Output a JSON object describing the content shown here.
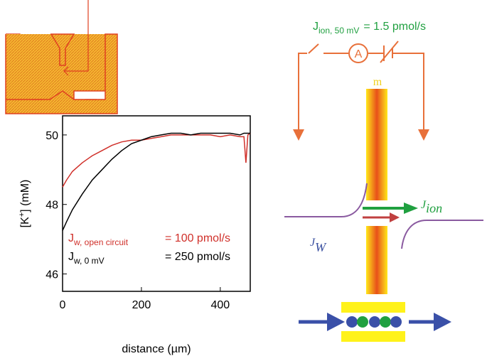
{
  "chart_data": {
    "type": "line",
    "x_label": "distance (µm)",
    "y_label": {
      "before": "[K",
      "sup": "+",
      "after": "] (mM)"
    },
    "x": [
      0,
      10,
      25,
      50,
      75,
      100,
      125,
      150,
      175,
      200,
      225,
      250,
      275,
      300,
      325,
      350,
      375,
      400,
      425,
      450,
      460,
      465,
      470,
      476
    ],
    "series": [
      {
        "name": "open circuit",
        "color": "#d0302a",
        "values": [
          48.5,
          48.7,
          48.95,
          49.2,
          49.4,
          49.55,
          49.7,
          49.8,
          49.85,
          49.85,
          49.9,
          49.95,
          50,
          50,
          50,
          50,
          50,
          49.95,
          50,
          49.95,
          49.95,
          49.2,
          50,
          50.05
        ]
      },
      {
        "name": "0 mV",
        "color": "#000000",
        "values": [
          47.25,
          47.5,
          47.85,
          48.3,
          48.7,
          49.0,
          49.3,
          49.55,
          49.75,
          49.85,
          49.95,
          50.0,
          50.05,
          50.05,
          50.0,
          50.05,
          50.05,
          50.05,
          50.05,
          50.0,
          50.05,
          50.05,
          50.05,
          50.05
        ]
      }
    ],
    "annotations": [
      {
        "symbol": "J",
        "subscript": "w, open circuit",
        "text": "= 100 pmol/s",
        "color": "#d0302a"
      },
      {
        "symbol": "J",
        "subscript": "w, 0 mV",
        "text": "= 250 pmol/s",
        "color": "#000000"
      }
    ],
    "xlim": [
      0,
      476
    ],
    "ylim": [
      45.5,
      50.55
    ],
    "xticks": [
      0,
      200,
      400
    ],
    "yticks": [
      46,
      48,
      50
    ]
  },
  "diagram": {
    "current": {
      "symbol": "J",
      "subscript": "ion, 50 mV",
      "text": "= 1.5 pmol/s"
    },
    "ammeter": "A",
    "membrane": "m",
    "ion_flux": {
      "symbol": "J",
      "subscript": "ion"
    },
    "water_flux": {
      "symbol": "J",
      "subscript": "W"
    }
  }
}
